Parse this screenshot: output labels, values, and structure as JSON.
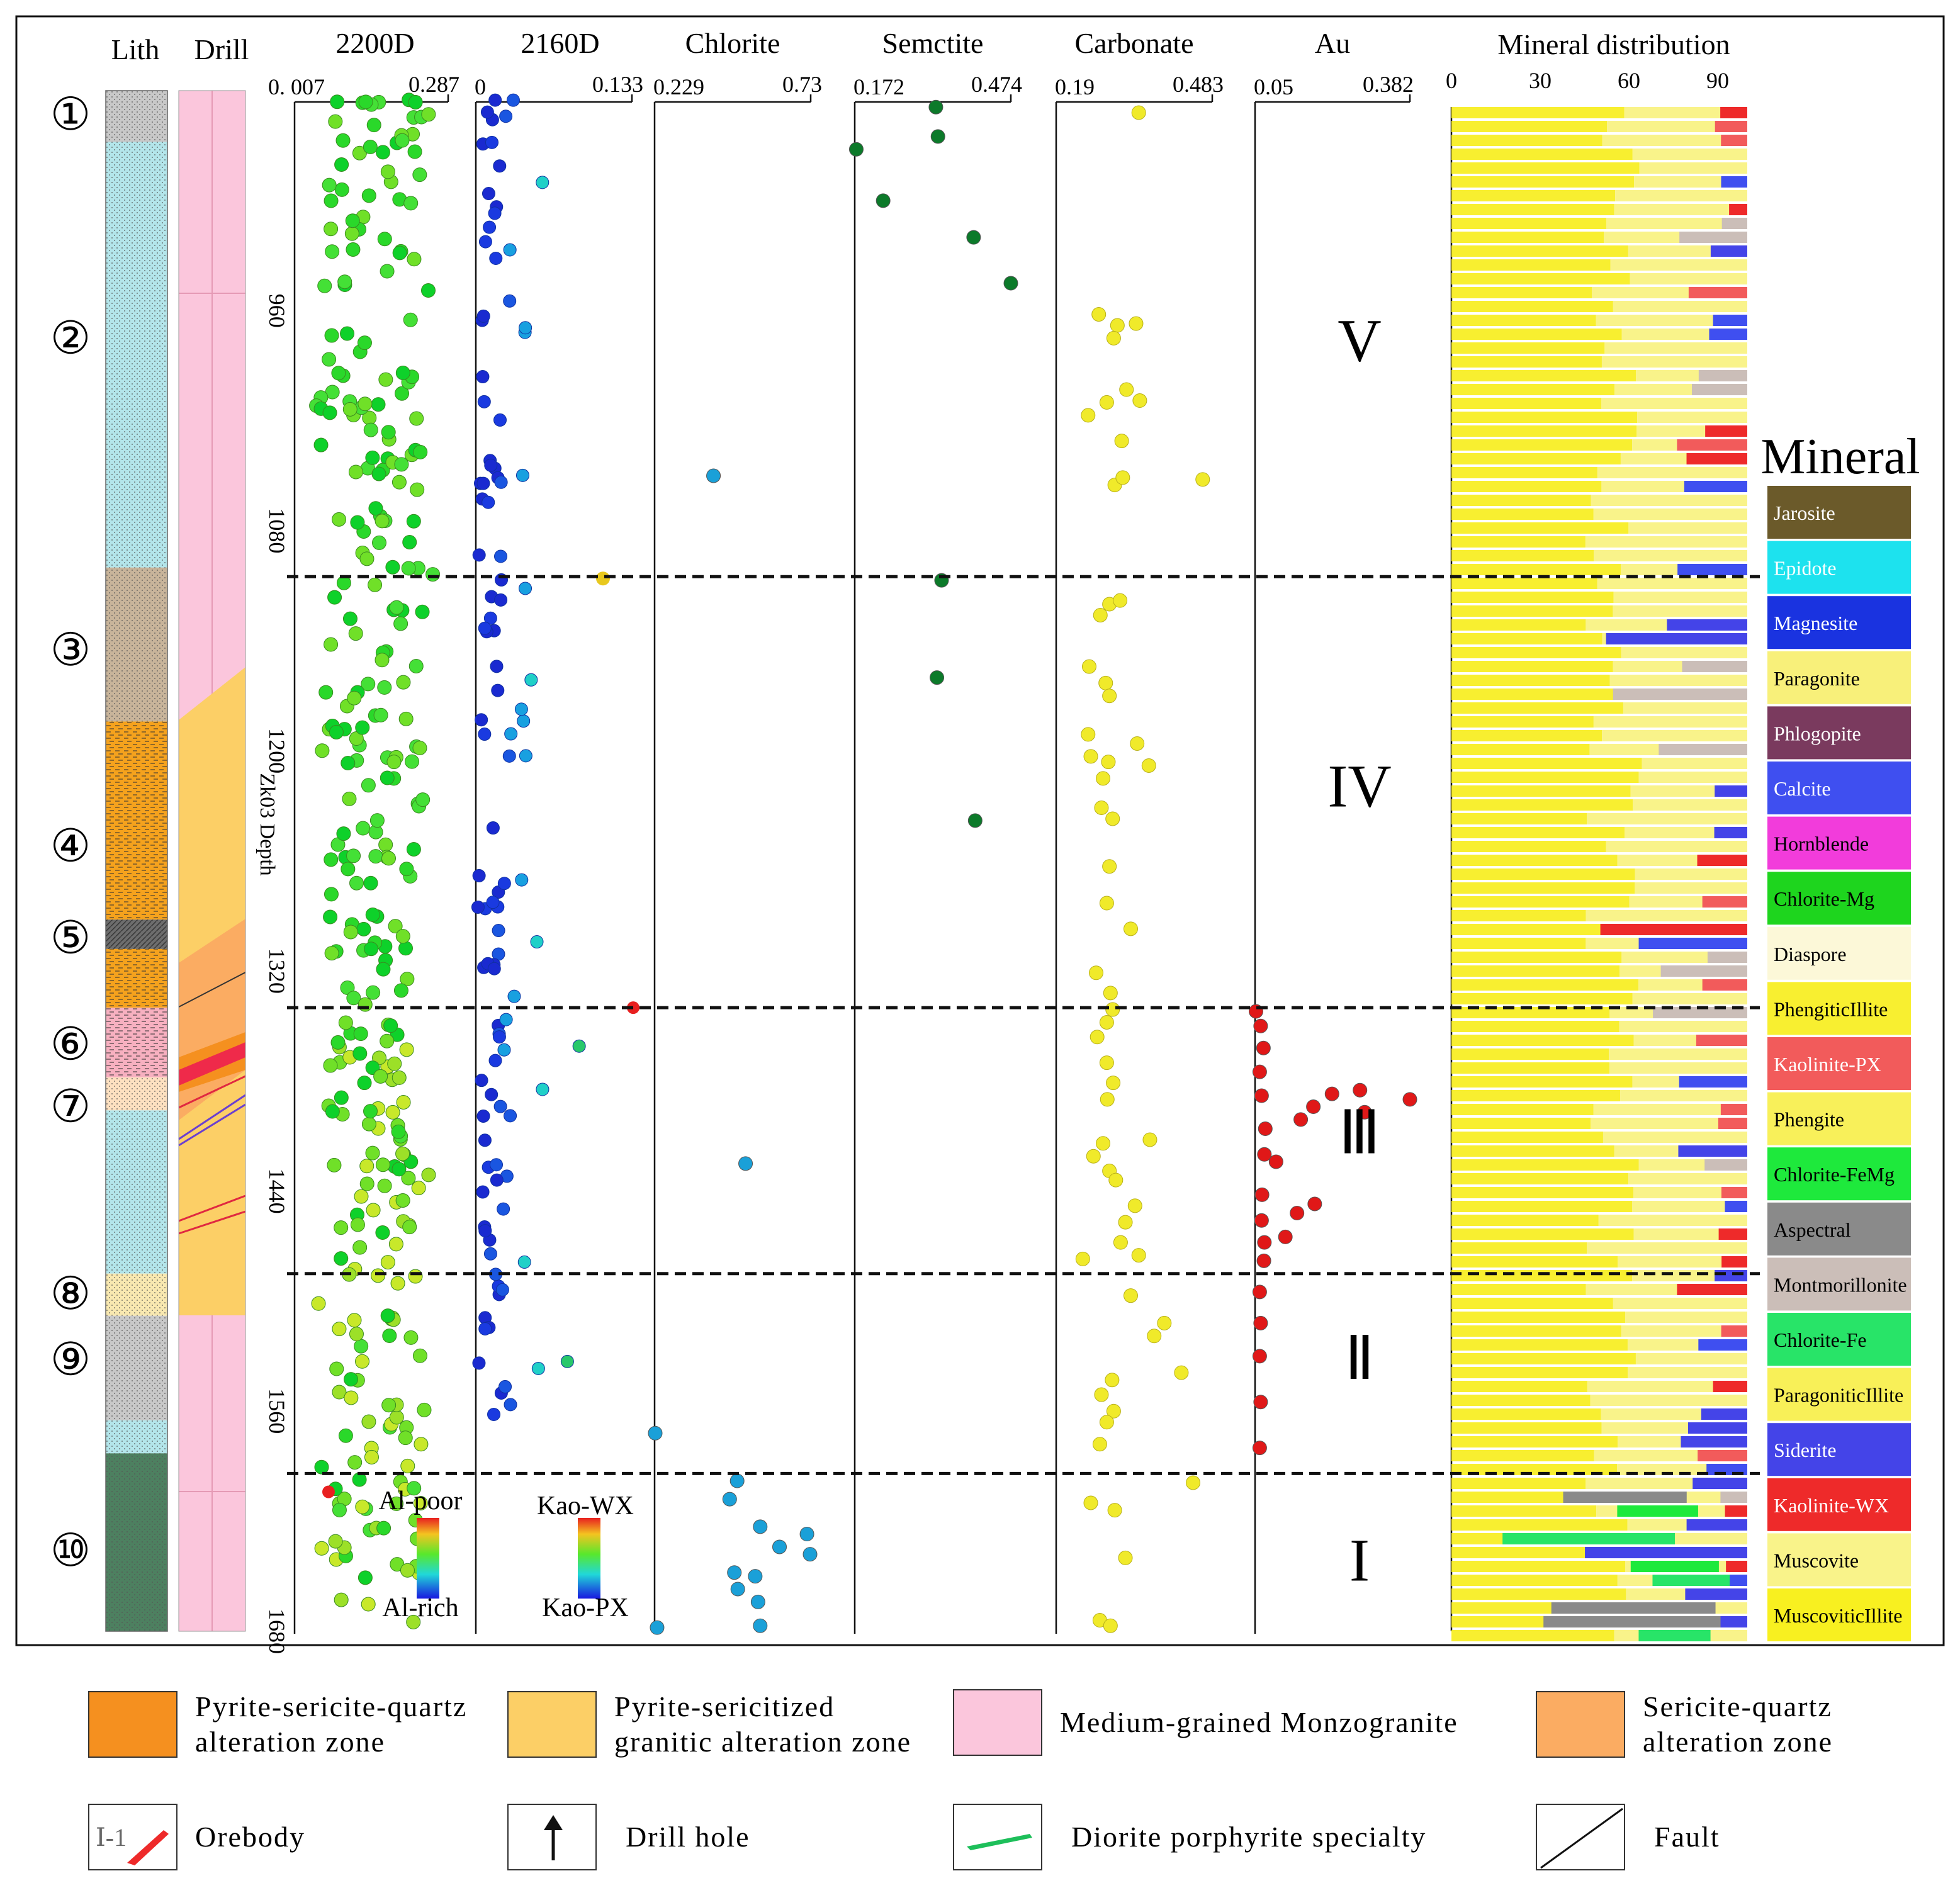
{
  "chart_data": {
    "type": "scatter",
    "title": "",
    "ylabel": "Zk03 Depth",
    "depth_ticks": [
      "960",
      "1080",
      "1200",
      "1320",
      "1440",
      "1560",
      "1680"
    ],
    "ylim": [
      840,
      1680
    ],
    "column_headers": {
      "lith": "Lith",
      "drill": "Drill",
      "mineral_distribution": "Mineral distribution"
    },
    "lith_units": [
      {
        "label": "①",
        "top": 840,
        "bottom": 868,
        "color": "#c8c8c8"
      },
      {
        "label": "②",
        "top": 868,
        "bottom": 1100,
        "color": "#b3e5ea"
      },
      {
        "label": "③",
        "top": 1100,
        "bottom": 1184,
        "color": "#c8b49a"
      },
      {
        "label": "④",
        "top": 1184,
        "bottom": 1292,
        "color": "#f5a21d"
      },
      {
        "label": "⑤",
        "top": 1292,
        "bottom": 1308,
        "color": "#6d6d6d"
      },
      {
        "label": "⑤",
        "top": 1308,
        "bottom": 1340,
        "color": "#f5a21d"
      },
      {
        "label": "⑥",
        "top": 1340,
        "bottom": 1378,
        "color": "#f7b0c0"
      },
      {
        "label": "⑦",
        "top": 1378,
        "bottom": 1396,
        "color": "#fde0c0"
      },
      {
        "label": "⑦",
        "top": 1396,
        "bottom": 1485,
        "color": "#b3e5ea"
      },
      {
        "label": "⑧",
        "top": 1485,
        "bottom": 1508,
        "color": "#f8e8b0"
      },
      {
        "label": "⑨",
        "top": 1508,
        "bottom": 1565,
        "color": "#c8c8c8"
      },
      {
        "label": "⑨",
        "top": 1565,
        "bottom": 1583,
        "color": "#b3e5ea"
      },
      {
        "label": "⑩",
        "top": 1583,
        "bottom": 1680,
        "color": "#4d8060"
      }
    ],
    "unit_labels": [
      "①",
      "②",
      "③",
      "④",
      "⑤",
      "⑥",
      "⑦",
      "⑧",
      "⑨",
      "⑩"
    ],
    "unit_label_depths": [
      853,
      975,
      1145,
      1252,
      1302,
      1360,
      1394,
      1496,
      1532,
      1636
    ],
    "zone_boundaries": [
      1105,
      1340,
      1485,
      1594
    ],
    "zones": [
      {
        "label": "V",
        "depth": 975
      },
      {
        "label": "IV",
        "depth": 1218
      },
      {
        "label": "Ⅲ",
        "depth": 1407
      },
      {
        "label": "Ⅱ",
        "depth": 1530
      },
      {
        "label": "I",
        "depth": 1640
      }
    ],
    "tracks": [
      {
        "name": "2200D",
        "min": "0. 007",
        "max": "0.287",
        "range": [
          0.007,
          0.287
        ]
      },
      {
        "name": "2160D",
        "min": "0",
        "max": "0.133",
        "range": [
          0,
          0.133
        ]
      },
      {
        "name": "Chlorite",
        "min": "0.229",
        "max": "0.73",
        "range": [
          0.229,
          0.73
        ]
      },
      {
        "name": "Semctite",
        "min": "0.172",
        "max": "0.474",
        "range": [
          0.172,
          0.474
        ]
      },
      {
        "name": "Carbonate",
        "min": "0.19",
        "max": "0.483",
        "range": [
          0.19,
          0.483
        ]
      },
      {
        "name": "Au",
        "min": "0.05",
        "max": "0.382",
        "range": [
          0.05,
          0.382
        ]
      }
    ],
    "series": [
      {
        "name": "Chlorite",
        "color": "#1aa0d8",
        "points": [
          [
            0.418,
            1050
          ],
          [
            0.521,
            1425
          ],
          [
            0.231,
            1572
          ],
          [
            0.494,
            1598
          ],
          [
            0.47,
            1608
          ],
          [
            0.568,
            1623
          ],
          [
            0.63,
            1634
          ],
          [
            0.718,
            1627
          ],
          [
            0.728,
            1638
          ],
          [
            0.485,
            1648
          ],
          [
            0.552,
            1650
          ],
          [
            0.496,
            1657
          ],
          [
            0.561,
            1664
          ],
          [
            0.237,
            1678
          ],
          [
            0.568,
            1677
          ]
        ]
      },
      {
        "name": "Semctite",
        "color": "#0c7a2a",
        "points": [
          [
            0.329,
            849
          ],
          [
            0.175,
            872
          ],
          [
            0.333,
            865
          ],
          [
            0.227,
            900
          ],
          [
            0.402,
            920
          ],
          [
            0.474,
            945
          ],
          [
            0.34,
            1107
          ],
          [
            0.331,
            1160
          ],
          [
            0.405,
            1238
          ]
        ]
      },
      {
        "name": "Carbonate",
        "color": "#f0ea2a",
        "points": [
          [
            0.345,
            852
          ],
          [
            0.27,
            962
          ],
          [
            0.305,
            968
          ],
          [
            0.34,
            967
          ],
          [
            0.298,
            975
          ],
          [
            0.285,
            1010
          ],
          [
            0.322,
            1003
          ],
          [
            0.25,
            1017
          ],
          [
            0.347,
            1009
          ],
          [
            0.313,
            1031
          ],
          [
            0.3,
            1055
          ],
          [
            0.315,
            1051
          ],
          [
            0.465,
            1052
          ],
          [
            0.29,
            1120
          ],
          [
            0.31,
            1118
          ],
          [
            0.273,
            1126
          ],
          [
            0.252,
            1154
          ],
          [
            0.283,
            1163
          ],
          [
            0.29,
            1170
          ],
          [
            0.25,
            1191
          ],
          [
            0.342,
            1196
          ],
          [
            0.255,
            1203
          ],
          [
            0.288,
            1206
          ],
          [
            0.278,
            1215
          ],
          [
            0.275,
            1231
          ],
          [
            0.296,
            1237
          ],
          [
            0.364,
            1208
          ],
          [
            0.29,
            1263
          ],
          [
            0.285,
            1283
          ],
          [
            0.33,
            1297
          ],
          [
            0.265,
            1321
          ],
          [
            0.292,
            1332
          ],
          [
            0.296,
            1341
          ],
          [
            0.285,
            1348
          ],
          [
            0.267,
            1356
          ],
          [
            0.285,
            1370
          ],
          [
            0.297,
            1381
          ],
          [
            0.286,
            1390
          ],
          [
            0.278,
            1414
          ],
          [
            0.366,
            1412
          ],
          [
            0.26,
            1421
          ],
          [
            0.29,
            1429
          ],
          [
            0.302,
            1434
          ],
          [
            0.338,
            1448
          ],
          [
            0.32,
            1457
          ],
          [
            0.311,
            1468
          ],
          [
            0.345,
            1475
          ],
          [
            0.24,
            1477
          ],
          [
            0.33,
            1497
          ],
          [
            0.393,
            1512
          ],
          [
            0.374,
            1519
          ],
          [
            0.425,
            1539
          ],
          [
            0.295,
            1543
          ],
          [
            0.275,
            1551
          ],
          [
            0.298,
            1560
          ],
          [
            0.285,
            1566
          ],
          [
            0.272,
            1578
          ],
          [
            0.447,
            1599
          ],
          [
            0.255,
            1610
          ],
          [
            0.3,
            1614
          ],
          [
            0.32,
            1640
          ],
          [
            0.272,
            1674
          ],
          [
            0.292,
            1677
          ]
        ]
      },
      {
        "name": "Au",
        "color": "#e01818",
        "points": [
          [
            0.052,
            1342
          ],
          [
            0.062,
            1350
          ],
          [
            0.068,
            1362
          ],
          [
            0.06,
            1375
          ],
          [
            0.064,
            1388
          ],
          [
            0.072,
            1406
          ],
          [
            0.07,
            1420
          ],
          [
            0.148,
            1401
          ],
          [
            0.175,
            1394
          ],
          [
            0.215,
            1387
          ],
          [
            0.275,
            1385
          ],
          [
            0.285,
            1397
          ],
          [
            0.382,
            1390
          ],
          [
            0.095,
            1424
          ],
          [
            0.065,
            1442
          ],
          [
            0.064,
            1456
          ],
          [
            0.07,
            1468
          ],
          [
            0.069,
            1478
          ],
          [
            0.115,
            1465
          ],
          [
            0.14,
            1452
          ],
          [
            0.178,
            1447
          ],
          [
            0.06,
            1495
          ],
          [
            0.062,
            1512
          ],
          [
            0.06,
            1530
          ],
          [
            0.062,
            1555
          ],
          [
            0.06,
            1580
          ]
        ]
      }
    ],
    "legend_2200D": {
      "top": "Al-poor",
      "bottom": "Al-rich"
    },
    "legend_2160D": {
      "top": "Kao-WX",
      "bottom": "Kao-PX"
    },
    "mineral_axis": {
      "ticks": [
        "0",
        "30",
        "60",
        "90"
      ],
      "max": 100
    },
    "minerals": [
      {
        "name": "Jarosite",
        "color": "#6b5a2a",
        "text_color": "#ffffff"
      },
      {
        "name": "Epidote",
        "color": "#1de2ee",
        "text_color": "#ffffff"
      },
      {
        "name": "Magnesite",
        "color": "#1a33e0",
        "text_color": "#ffffff"
      },
      {
        "name": "Paragonite",
        "color": "#f8f07a",
        "text_color": "#000000"
      },
      {
        "name": "Phlogopite",
        "color": "#7a3a5e",
        "text_color": "#ffffff"
      },
      {
        "name": "Calcite",
        "color": "#3f4ff0",
        "text_color": "#ffffff"
      },
      {
        "name": "Hornblende",
        "color": "#f23cdb",
        "text_color": "#000000"
      },
      {
        "name": "Chlorite-Mg",
        "color": "#1ed51e",
        "text_color": "#000000"
      },
      {
        "name": "Diaspore",
        "color": "#fcf8d8",
        "text_color": "#000000"
      },
      {
        "name": "PhengiticIllite",
        "color": "#f8ef30",
        "text_color": "#000000"
      },
      {
        "name": "Kaolinite-PX",
        "color": "#f25b5b",
        "text_color": "#ffffff"
      },
      {
        "name": "Phengite",
        "color": "#f8f05a",
        "text_color": "#000000"
      },
      {
        "name": "Chlorite-FeMg",
        "color": "#1ee93c",
        "text_color": "#000000"
      },
      {
        "name": "Aspectral",
        "color": "#8a8a8a",
        "text_color": "#000000"
      },
      {
        "name": "Montmorillonite",
        "color": "#cbbeb8",
        "text_color": "#000000"
      },
      {
        "name": "Chlorite-Fe",
        "color": "#28e468",
        "text_color": "#000000"
      },
      {
        "name": "ParagoniticIllite",
        "color": "#f8f058",
        "text_color": "#000000"
      },
      {
        "name": "Siderite",
        "color": "#4444e8",
        "text_color": "#ffffff"
      },
      {
        "name": "Kaolinite-WX",
        "color": "#ee2a2a",
        "text_color": "#ffffff"
      },
      {
        "name": "Muscovite",
        "color": "#f9f38a",
        "text_color": "#000000"
      },
      {
        "name": "MuscoviticIllite",
        "color": "#f8f020",
        "text_color": "#000000"
      }
    ],
    "mineral_legend_title": "Mineral"
  },
  "legend": {
    "items": [
      {
        "label": "Pyrite-sericite-quartz\nalteration zone",
        "color": "#f5901f"
      },
      {
        "label": "Pyrite-sericitized\ngranitic alteration zone",
        "color": "#fccf66"
      },
      {
        "label": "Medium-grained Monzogranite",
        "color": "#fbc6dc"
      },
      {
        "label": "Sericite-quartz\nalteration zone",
        "color": "#fbac62"
      }
    ],
    "symbols": {
      "orebody_label": "Orebody",
      "orebody_code": "Ⅰ-1",
      "drill_label": "Drill hole",
      "diorite_label": "Diorite porphyrite specialty",
      "fault_label": "Fault"
    }
  }
}
